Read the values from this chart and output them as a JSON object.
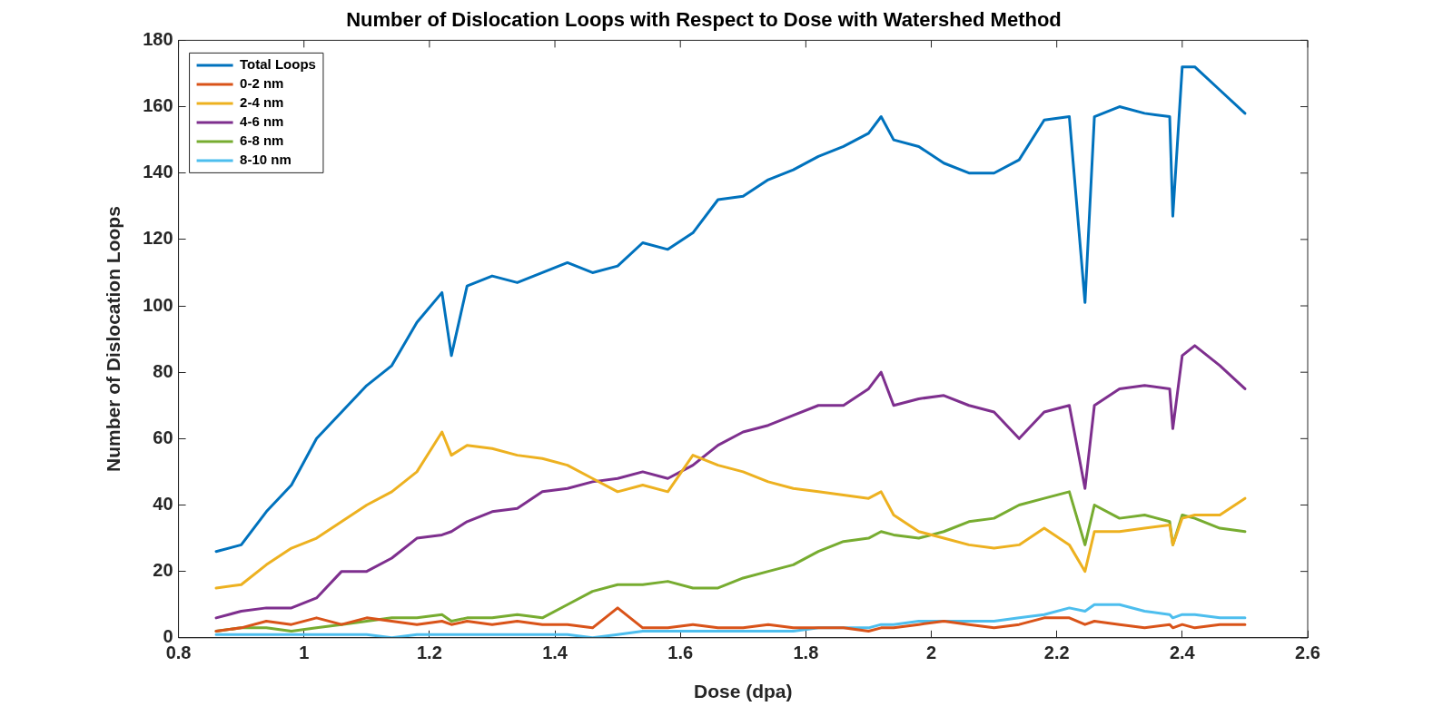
{
  "chart_data": {
    "type": "line",
    "title": "Number of Dislocation Loops with Respect to Dose with Watershed Method",
    "xlabel": "Dose (dpa)",
    "ylabel": "Number of Dislocation Loops",
    "x": [
      0.86,
      0.9,
      0.94,
      0.98,
      1.02,
      1.06,
      1.1,
      1.14,
      1.18,
      1.22,
      1.235,
      1.26,
      1.3,
      1.34,
      1.38,
      1.42,
      1.46,
      1.5,
      1.54,
      1.58,
      1.62,
      1.66,
      1.7,
      1.74,
      1.78,
      1.82,
      1.86,
      1.9,
      1.92,
      1.94,
      1.98,
      2.02,
      2.06,
      2.1,
      2.14,
      2.18,
      2.22,
      2.245,
      2.26,
      2.3,
      2.34,
      2.38,
      2.385,
      2.4,
      2.42,
      2.46,
      2.5
    ],
    "series": [
      {
        "name": "Total Loops",
        "color": "#0072bd",
        "values": [
          26,
          28,
          38,
          46,
          60,
          68,
          76,
          82,
          95,
          104,
          85,
          106,
          109,
          107,
          110,
          113,
          110,
          112,
          119,
          117,
          122,
          132,
          133,
          138,
          141,
          145,
          148,
          152,
          157,
          150,
          148,
          143,
          140,
          140,
          144,
          156,
          157,
          101,
          157,
          160,
          158,
          157,
          127,
          172,
          172,
          165,
          158
        ]
      },
      {
        "name": "0-2 nm",
        "color": "#d95319",
        "values": [
          2,
          3,
          5,
          4,
          6,
          4,
          6,
          5,
          4,
          5,
          4,
          5,
          4,
          5,
          4,
          4,
          3,
          9,
          3,
          3,
          4,
          3,
          3,
          4,
          3,
          3,
          3,
          2,
          3,
          3,
          4,
          5,
          4,
          3,
          4,
          6,
          6,
          4,
          5,
          4,
          3,
          4,
          3,
          4,
          3,
          4,
          4
        ]
      },
      {
        "name": "2-4 nm",
        "color": "#edb120",
        "values": [
          15,
          16,
          22,
          27,
          30,
          35,
          40,
          44,
          50,
          62,
          55,
          58,
          57,
          55,
          54,
          52,
          48,
          44,
          46,
          44,
          55,
          52,
          50,
          47,
          45,
          44,
          43,
          42,
          44,
          37,
          32,
          30,
          28,
          27,
          28,
          33,
          28,
          20,
          32,
          32,
          33,
          34,
          28,
          36,
          37,
          37,
          42
        ]
      },
      {
        "name": "4-6 nm",
        "color": "#7e2f8e",
        "values": [
          6,
          8,
          9,
          9,
          12,
          20,
          20,
          24,
          30,
          31,
          32,
          35,
          38,
          39,
          44,
          45,
          47,
          48,
          50,
          48,
          52,
          58,
          62,
          64,
          67,
          70,
          70,
          75,
          80,
          70,
          72,
          73,
          70,
          68,
          60,
          68,
          70,
          45,
          70,
          75,
          76,
          75,
          63,
          85,
          88,
          82,
          75
        ]
      },
      {
        "name": "6-8 nm",
        "color": "#77ac30",
        "values": [
          2,
          3,
          3,
          2,
          3,
          4,
          5,
          6,
          6,
          7,
          5,
          6,
          6,
          7,
          6,
          10,
          14,
          16,
          16,
          17,
          15,
          15,
          18,
          20,
          22,
          26,
          29,
          30,
          32,
          31,
          30,
          32,
          35,
          36,
          40,
          42,
          44,
          28,
          40,
          36,
          37,
          35,
          28,
          37,
          36,
          33,
          32
        ]
      },
      {
        "name": "8-10 nm",
        "color": "#4dbeee",
        "values": [
          1,
          1,
          1,
          1,
          1,
          1,
          1,
          0,
          1,
          1,
          1,
          1,
          1,
          1,
          1,
          1,
          0,
          1,
          2,
          2,
          2,
          2,
          2,
          2,
          2,
          3,
          3,
          3,
          4,
          4,
          5,
          5,
          5,
          5,
          6,
          7,
          9,
          8,
          10,
          10,
          8,
          7,
          6,
          7,
          7,
          6,
          6
        ]
      }
    ],
    "xlim": [
      0.8,
      2.6
    ],
    "xticks": [
      0.8,
      1,
      1.2,
      1.4,
      1.6,
      1.8,
      2,
      2.2,
      2.4,
      2.6
    ],
    "ylim": [
      0,
      180
    ],
    "yticks": [
      0,
      20,
      40,
      60,
      80,
      100,
      120,
      140,
      160,
      180
    ],
    "grid": false,
    "legend": "top left",
    "marker": "none",
    "line_style": "solid"
  }
}
